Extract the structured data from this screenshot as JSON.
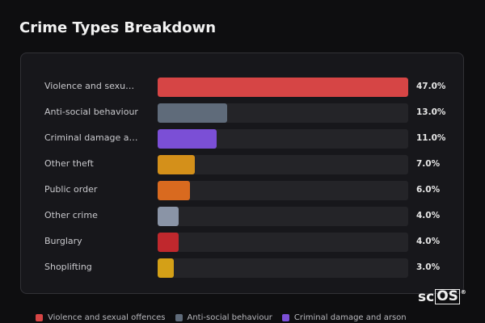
{
  "chart_data": {
    "type": "bar",
    "orientation": "horizontal",
    "title": "Crime Types Breakdown",
    "categories": [
      "Violence and sexual offences",
      "Anti-social behaviour",
      "Criminal damage and arson",
      "Other theft",
      "Public order",
      "Other crime",
      "Burglary",
      "Shoplifting"
    ],
    "values": [
      47,
      13,
      11,
      7,
      6,
      4,
      4,
      3
    ],
    "value_labels": [
      "47.0%",
      "13.0%",
      "11.0%",
      "7.0%",
      "6.0%",
      "4.0%",
      "4.0%",
      "3.0%"
    ],
    "colors": [
      "#d64545",
      "#5f6b7a",
      "#7b4fd6",
      "#d4901a",
      "#d96a1f",
      "#8a94a6",
      "#c0282d",
      "#d4a017"
    ],
    "legend": true
  },
  "logo": {
    "prefix": "sc",
    "boxed": "OS",
    "mark": "®"
  }
}
